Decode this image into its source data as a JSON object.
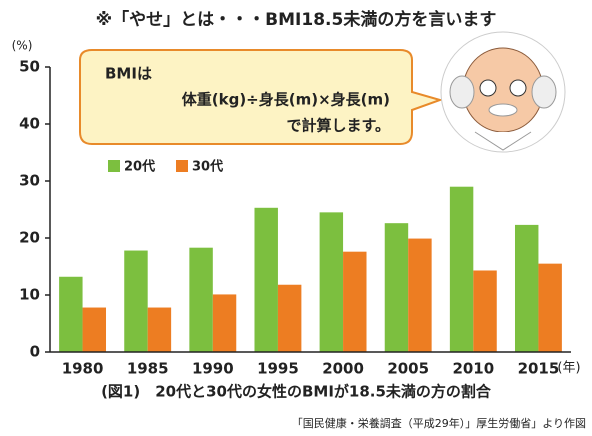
{
  "chart_data": {
    "type": "bar",
    "title": "※「やせ」とは・・・BMI18.5未満の方を言います",
    "y_label": "(%)",
    "x_label": "(年)",
    "annotation": [
      "BMIは",
      "体重(kg)÷身長(m)×身長(m)",
      "で計算します。"
    ],
    "caption": "(図1)　20代と30代の女性のBMIが18.5未満の方の割合",
    "source": "「国民健康・栄養調査（平成29年）」厚生労働省」より作図",
    "categories": [
      "1980",
      "1985",
      "1990",
      "1995",
      "2000",
      "2005",
      "2010",
      "2015"
    ],
    "series": [
      {
        "name": "20代",
        "color": "#7cbf3f",
        "values": [
          13.2,
          17.8,
          18.3,
          25.3,
          24.5,
          22.6,
          29.0,
          22.3
        ]
      },
      {
        "name": "30代",
        "color": "#ed7d22",
        "values": [
          7.8,
          7.8,
          10.1,
          11.8,
          17.6,
          19.9,
          14.3,
          15.5
        ]
      }
    ],
    "ylim": [
      0,
      50
    ],
    "yticks": [
      0,
      10,
      20,
      30,
      40,
      50
    ],
    "grid": false
  }
}
